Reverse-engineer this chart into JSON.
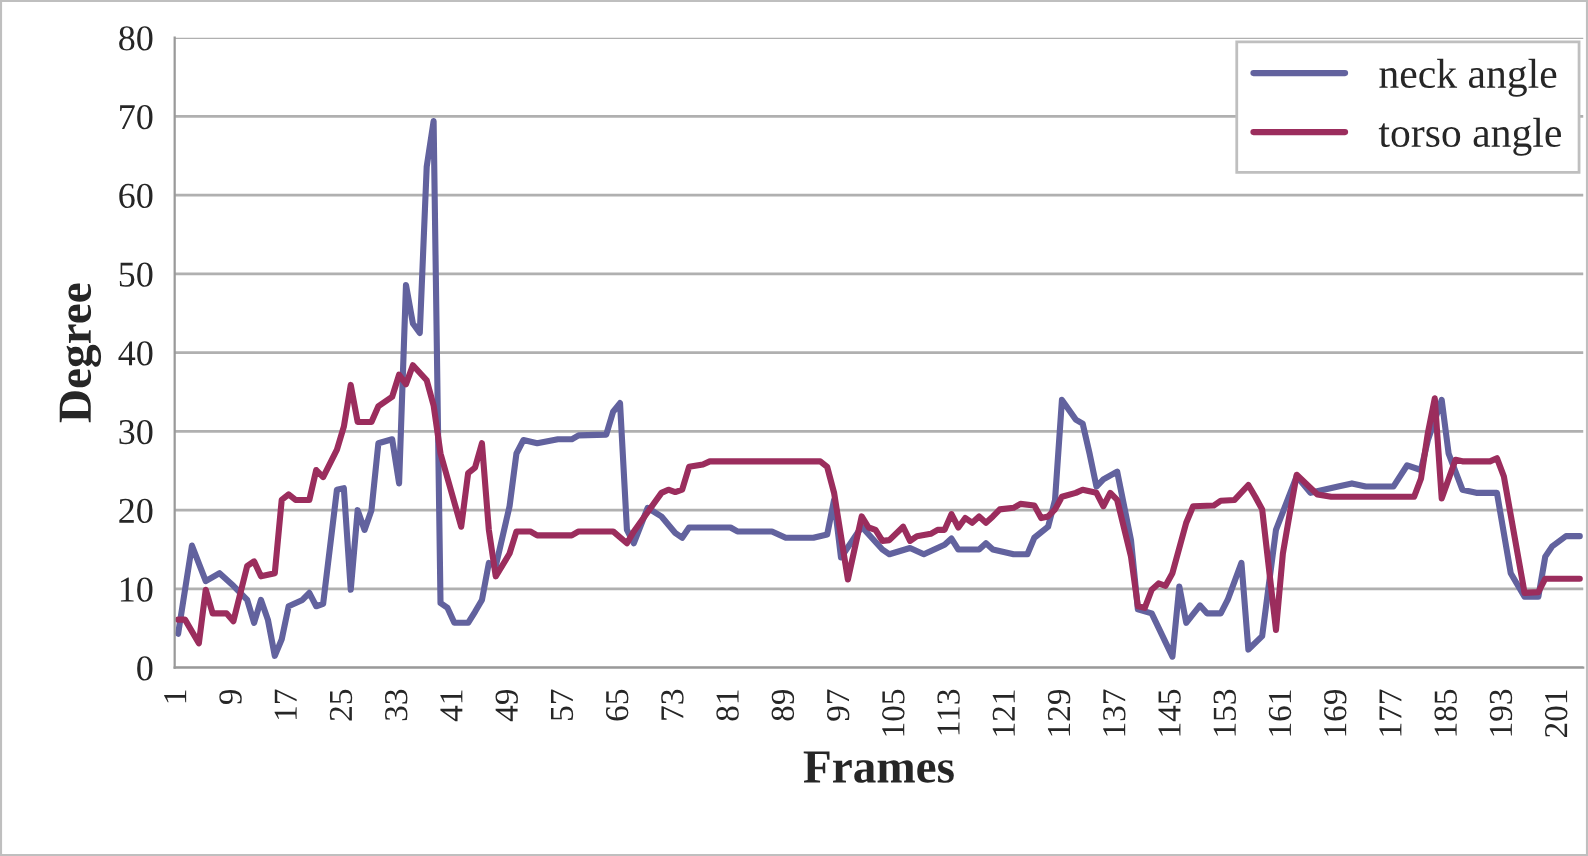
{
  "chart_data": {
    "type": "line",
    "xlabel": "Frames",
    "ylabel": "Degree",
    "xlim": [
      0.5,
      204.5
    ],
    "xticks": [
      1,
      9,
      17,
      25,
      33,
      41,
      49,
      57,
      65,
      73,
      81,
      89,
      97,
      105,
      113,
      121,
      129,
      137,
      145,
      153,
      161,
      169,
      177,
      185,
      193,
      201
    ],
    "ylim": [
      0,
      80
    ],
    "yticks": [
      0,
      10,
      20,
      30,
      40,
      50,
      60,
      70,
      80
    ],
    "grid": "y",
    "legend": "top right",
    "marker": "none",
    "line_style": "solid",
    "series": [
      {
        "name": "neck angle",
        "color": "#62629e",
        "x": [
          1,
          3,
          5,
          7,
          9,
          11,
          12,
          13,
          14,
          15,
          16,
          17,
          19,
          20,
          21,
          22,
          24,
          25,
          26,
          27,
          28,
          29,
          30,
          32,
          33,
          34,
          35,
          36,
          37,
          38,
          39,
          40,
          41,
          43,
          44,
          45,
          46,
          47,
          49,
          50,
          51,
          53,
          56,
          58,
          59,
          63,
          64,
          65,
          66,
          67,
          69,
          71,
          73,
          74,
          75,
          81,
          82,
          87,
          89,
          93,
          95,
          96,
          97,
          100,
          103,
          104,
          107,
          109,
          112,
          113,
          114,
          117,
          118,
          119,
          122,
          124,
          125,
          127,
          128,
          129,
          131,
          132,
          133,
          134,
          135,
          137,
          139,
          140,
          142,
          145,
          146,
          147,
          149,
          150,
          152,
          153,
          155,
          156,
          158,
          160,
          163,
          165,
          169,
          171,
          173,
          177,
          179,
          181,
          182,
          184,
          185,
          187,
          189,
          192,
          194,
          196,
          198,
          199,
          200,
          202,
          204
        ],
        "values": [
          4.3,
          15.5,
          11,
          12,
          10.4,
          8.6,
          5.7,
          8.6,
          6.1,
          1.5,
          3.6,
          7.8,
          8.6,
          9.5,
          7.8,
          8.1,
          22.6,
          22.8,
          9.9,
          20,
          17.5,
          20,
          28.5,
          29,
          23.4,
          48.6,
          43.7,
          42.5,
          63.6,
          69.4,
          8.2,
          7.6,
          5.7,
          5.7,
          7.1,
          8.6,
          13.3,
          12.9,
          20.5,
          27.2,
          28.9,
          28.5,
          29,
          29,
          29.5,
          29.6,
          32.5,
          33.6,
          17.5,
          15.8,
          20.3,
          19.2,
          17.1,
          16.5,
          17.8,
          17.8,
          17.3,
          17.3,
          16.5,
          16.5,
          16.9,
          21.3,
          14,
          17.9,
          15,
          14.4,
          15.2,
          14.4,
          15.6,
          16.4,
          15,
          15,
          15.8,
          15,
          14.4,
          14.4,
          16.5,
          17.9,
          21.3,
          34,
          31.5,
          31,
          27.2,
          23,
          23.9,
          24.9,
          16.2,
          7.4,
          6.9,
          1.4,
          10.3,
          5.7,
          7.9,
          6.9,
          6.9,
          8.6,
          13.3,
          2.3,
          4,
          17.5,
          24.3,
          22.2,
          23,
          23.4,
          23,
          23,
          25.7,
          25.1,
          28.9,
          34,
          27.2,
          22.6,
          22.2,
          22.2,
          12,
          9,
          9,
          14.1,
          15.4,
          16.7,
          16.7
        ]
      },
      {
        "name": "torso angle",
        "color": "#9b2d5d",
        "x": [
          1,
          2,
          4,
          5,
          6,
          8,
          9,
          11,
          12,
          13,
          15,
          16,
          17,
          18,
          20,
          21,
          22,
          24,
          25,
          26,
          27,
          29,
          30,
          32,
          33,
          34,
          35,
          37,
          38,
          39,
          42,
          43,
          44,
          45,
          46,
          47,
          49,
          50,
          52,
          53,
          58,
          59,
          64,
          66,
          67,
          71,
          72,
          73,
          74,
          75,
          77,
          78,
          94,
          95,
          96,
          98,
          100,
          101,
          102,
          103,
          104,
          106,
          107,
          108,
          110,
          111,
          112,
          113,
          114,
          115,
          116,
          117,
          118,
          119,
          120,
          122,
          123,
          125,
          126,
          127,
          128,
          129,
          131,
          132,
          134,
          135,
          136,
          137,
          139,
          140,
          141,
          142,
          143,
          144,
          145,
          147,
          148,
          151,
          152,
          154,
          156,
          157,
          158,
          160,
          161,
          162,
          163,
          166,
          168,
          180,
          181,
          182,
          183,
          184,
          186,
          187,
          191,
          192,
          193,
          196,
          198,
          199,
          204
        ],
        "values": [
          6.1,
          6.1,
          3.1,
          9.9,
          6.9,
          6.9,
          5.9,
          12.9,
          13.5,
          11.6,
          12,
          21.3,
          22,
          21.3,
          21.3,
          25.1,
          24.2,
          27.7,
          30.6,
          35.9,
          31.2,
          31.2,
          33.2,
          34.4,
          37.2,
          36,
          38.4,
          36.5,
          33.3,
          27.2,
          17.9,
          24.7,
          25.4,
          28.5,
          17.5,
          11.6,
          14.5,
          17.3,
          17.3,
          16.8,
          16.8,
          17.3,
          17.3,
          15.8,
          17.3,
          22.2,
          22.6,
          22.3,
          22.6,
          25.5,
          25.8,
          26.2,
          26.2,
          25.5,
          22.2,
          11.2,
          19.2,
          17.8,
          17.5,
          16.1,
          16.2,
          17.9,
          16.1,
          16.7,
          17,
          17.5,
          17.5,
          19.5,
          17.8,
          19,
          18.4,
          19.2,
          18.4,
          19.2,
          20.1,
          20.3,
          20.8,
          20.6,
          19,
          19.2,
          20.1,
          21.7,
          22.2,
          22.6,
          22.2,
          20.5,
          22.2,
          21.3,
          14.1,
          7.8,
          7.6,
          9.9,
          10.7,
          10.4,
          12,
          18.4,
          20.5,
          20.6,
          21.2,
          21.3,
          23.2,
          21.7,
          20.1,
          4.8,
          14.5,
          19.6,
          24.5,
          22,
          21.7,
          21.7,
          24,
          29.8,
          34.2,
          21.5,
          26.4,
          26.2,
          26.2,
          26.6,
          24.3,
          9.5,
          9.6,
          11.3,
          11.3
        ]
      }
    ]
  }
}
